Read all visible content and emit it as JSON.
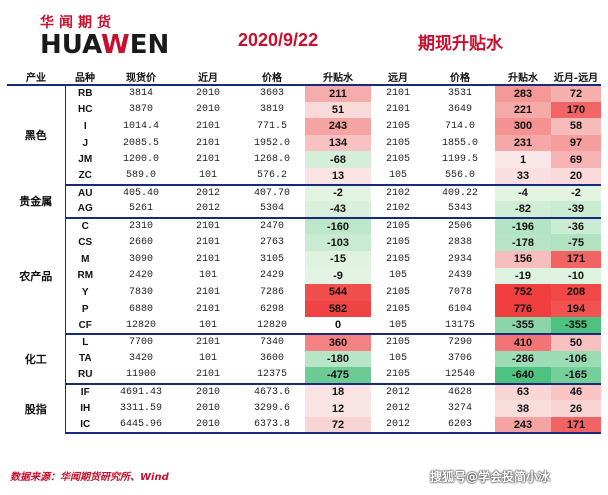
{
  "header": {
    "logo_cn": "华闻期货",
    "logo_en_a": "HUA",
    "logo_en_w": "W",
    "logo_en_b": "EN",
    "date": "2020/9/22",
    "title": "期现升贴水"
  },
  "columns": [
    "产业",
    "品种",
    "现货价",
    "近月",
    "价格",
    "升贴水",
    "远月",
    "价格",
    "升贴水",
    "近月-远月"
  ],
  "sections": [
    {
      "name": "黑色",
      "rows": [
        {
          "code": "RB",
          "spot": "3814",
          "near": "2010",
          "near_price": "3603",
          "near_basis": "211",
          "far": "2101",
          "far_price": "3531",
          "far_basis": "283",
          "spread": "72"
        },
        {
          "code": "HC",
          "spot": "3870",
          "near": "2010",
          "near_price": "3819",
          "near_basis": "51",
          "far": "2101",
          "far_price": "3649",
          "far_basis": "221",
          "spread": "170"
        },
        {
          "code": "I",
          "spot": "1014.4",
          "near": "2101",
          "near_price": "771.5",
          "near_basis": "243",
          "far": "2105",
          "far_price": "714.0",
          "far_basis": "300",
          "spread": "58"
        },
        {
          "code": "J",
          "spot": "2085.5",
          "near": "2101",
          "near_price": "1952.0",
          "near_basis": "134",
          "far": "2105",
          "far_price": "1855.0",
          "far_basis": "231",
          "spread": "97"
        },
        {
          "code": "JM",
          "spot": "1200.0",
          "near": "2101",
          "near_price": "1268.0",
          "near_basis": "-68",
          "far": "2105",
          "far_price": "1199.5",
          "far_basis": "1",
          "spread": "69"
        },
        {
          "code": "ZC",
          "spot": "589.0",
          "near": "101",
          "near_price": "576.2",
          "near_basis": "13",
          "far": "105",
          "far_price": "556.0",
          "far_basis": "33",
          "spread": "20"
        }
      ]
    },
    {
      "name": "贵金属",
      "rows": [
        {
          "code": "AU",
          "spot": "405.40",
          "near": "2012",
          "near_price": "407.70",
          "near_basis": "-2",
          "far": "2102",
          "far_price": "409.22",
          "far_basis": "-4",
          "spread": "-2"
        },
        {
          "code": "AG",
          "spot": "5261",
          "near": "2012",
          "near_price": "5304",
          "near_basis": "-43",
          "far": "2102",
          "far_price": "5343",
          "far_basis": "-82",
          "spread": "-39"
        }
      ]
    },
    {
      "name": "农产品",
      "rows": [
        {
          "code": "C",
          "spot": "2310",
          "near": "2101",
          "near_price": "2470",
          "near_basis": "-160",
          "far": "2105",
          "far_price": "2506",
          "far_basis": "-196",
          "spread": "-36"
        },
        {
          "code": "CS",
          "spot": "2660",
          "near": "2101",
          "near_price": "2763",
          "near_basis": "-103",
          "far": "2105",
          "far_price": "2838",
          "far_basis": "-178",
          "spread": "-75"
        },
        {
          "code": "M",
          "spot": "3090",
          "near": "2101",
          "near_price": "3105",
          "near_basis": "-15",
          "far": "2105",
          "far_price": "2934",
          "far_basis": "156",
          "spread": "171"
        },
        {
          "code": "RM",
          "spot": "2420",
          "near": "101",
          "near_price": "2429",
          "near_basis": "-9",
          "far": "105",
          "far_price": "2439",
          "far_basis": "-19",
          "spread": "-10"
        },
        {
          "code": "Y",
          "spot": "7830",
          "near": "2101",
          "near_price": "7286",
          "near_basis": "544",
          "far": "2105",
          "far_price": "7078",
          "far_basis": "752",
          "spread": "208"
        },
        {
          "code": "P",
          "spot": "6880",
          "near": "2101",
          "near_price": "6298",
          "near_basis": "582",
          "far": "2105",
          "far_price": "6104",
          "far_basis": "776",
          "spread": "194"
        },
        {
          "code": "CF",
          "spot": "12820",
          "near": "101",
          "near_price": "12820",
          "near_basis": "0",
          "far": "105",
          "far_price": "13175",
          "far_basis": "-355",
          "spread": "-355"
        }
      ]
    },
    {
      "name": "化工",
      "rows": [
        {
          "code": "L",
          "spot": "7700",
          "near": "2101",
          "near_price": "7340",
          "near_basis": "360",
          "far": "2105",
          "far_price": "7290",
          "far_basis": "410",
          "spread": "50"
        },
        {
          "code": "TA",
          "spot": "3420",
          "near": "101",
          "near_price": "3600",
          "near_basis": "-180",
          "far": "105",
          "far_price": "3706",
          "far_basis": "-286",
          "spread": "-106"
        },
        {
          "code": "RU",
          "spot": "11900",
          "near": "2101",
          "near_price": "12375",
          "near_basis": "-475",
          "far": "2105",
          "far_price": "12540",
          "far_basis": "-640",
          "spread": "-165"
        }
      ]
    },
    {
      "name": "股指",
      "rows": [
        {
          "code": "IF",
          "spot": "4691.43",
          "near": "2010",
          "near_price": "4673.6",
          "near_basis": "18",
          "far": "2012",
          "far_price": "4628",
          "far_basis": "63",
          "spread": "46"
        },
        {
          "code": "IH",
          "spot": "3311.59",
          "near": "2010",
          "near_price": "3299.6",
          "near_basis": "12",
          "far": "2012",
          "far_price": "3274",
          "far_basis": "38",
          "spread": "26"
        },
        {
          "code": "IC",
          "spot": "6445.96",
          "near": "2010",
          "near_price": "6373.8",
          "near_basis": "72",
          "far": "2012",
          "far_price": "6203",
          "far_basis": "243",
          "spread": "171"
        }
      ]
    }
  ],
  "footer": {
    "source": "数据来源：华闻期货研究所、Wind",
    "watermark": "搜狐号@学会投简小冰"
  }
}
